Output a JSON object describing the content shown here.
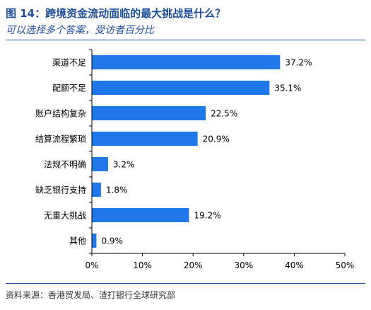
{
  "header": {
    "title": "图 14：跨境资金流动面临的最大挑战是什么？",
    "subtitle": "可以选择多个答案，受访者百分比"
  },
  "footer": {
    "source": "资料来源：香港贸发局、渣打银行全球研究部"
  },
  "colors": {
    "bar": "#1f77e8",
    "accent": "#1f4e99"
  },
  "chart_data": {
    "type": "bar",
    "orientation": "horizontal",
    "categories": [
      "渠道不足",
      "配额不足",
      "账户结构复杂",
      "结算流程繁琐",
      "法规不明确",
      "缺乏银行支持",
      "无重大挑战",
      "其他"
    ],
    "values": [
      37.2,
      35.1,
      22.5,
      20.9,
      3.2,
      1.8,
      19.2,
      0.9
    ],
    "value_labels": [
      "37.2%",
      "35.1%",
      "22.5%",
      "20.9%",
      "3.2%",
      "1.8%",
      "19.2%",
      "0.9%"
    ],
    "xlim": [
      0,
      50
    ],
    "xticks": [
      0,
      10,
      20,
      30,
      40,
      50
    ],
    "xtick_labels": [
      "0%",
      "10%",
      "20%",
      "30%",
      "40%",
      "50%"
    ],
    "grid": false,
    "legend": "none"
  }
}
